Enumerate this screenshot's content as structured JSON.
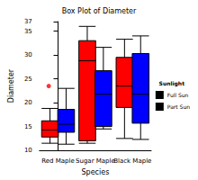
{
  "chart_data": {
    "type": "boxplot",
    "title": "Box Plot of Diameter",
    "x_label": "Species",
    "y_label": "Diameter",
    "categories": [
      "Red Maple",
      "Sugar Maple",
      "Black Maple"
    ],
    "legend_title": "Sunlight",
    "legend": "right",
    "grid": false,
    "ylim": [
      10,
      37
    ],
    "yticks": [
      10,
      15,
      20,
      25,
      30,
      35
    ],
    "series": [
      {
        "name": "Full Sun",
        "color": "#ff0000",
        "values": [
          [
            11.5,
            12.8,
            14.3,
            16.2,
            18.8
          ],
          [
            11.5,
            12.0,
            28.8,
            33.0,
            36.0
          ],
          [
            12.5,
            19.0,
            23.5,
            29.5,
            33.3
          ]
        ],
        "outliers": [
          [
            23.5
          ],
          [],
          []
        ]
      },
      {
        "name": "Part Sun",
        "color": "#0000ff",
        "values": [
          [
            11.3,
            13.8,
            15.5,
            18.6,
            23.0
          ],
          [
            14.5,
            15.0,
            21.8,
            26.7,
            31.6
          ],
          [
            12.3,
            15.7,
            21.8,
            30.3,
            34.0
          ]
        ],
        "outliers": [
          [],
          [],
          []
        ]
      }
    ]
  }
}
